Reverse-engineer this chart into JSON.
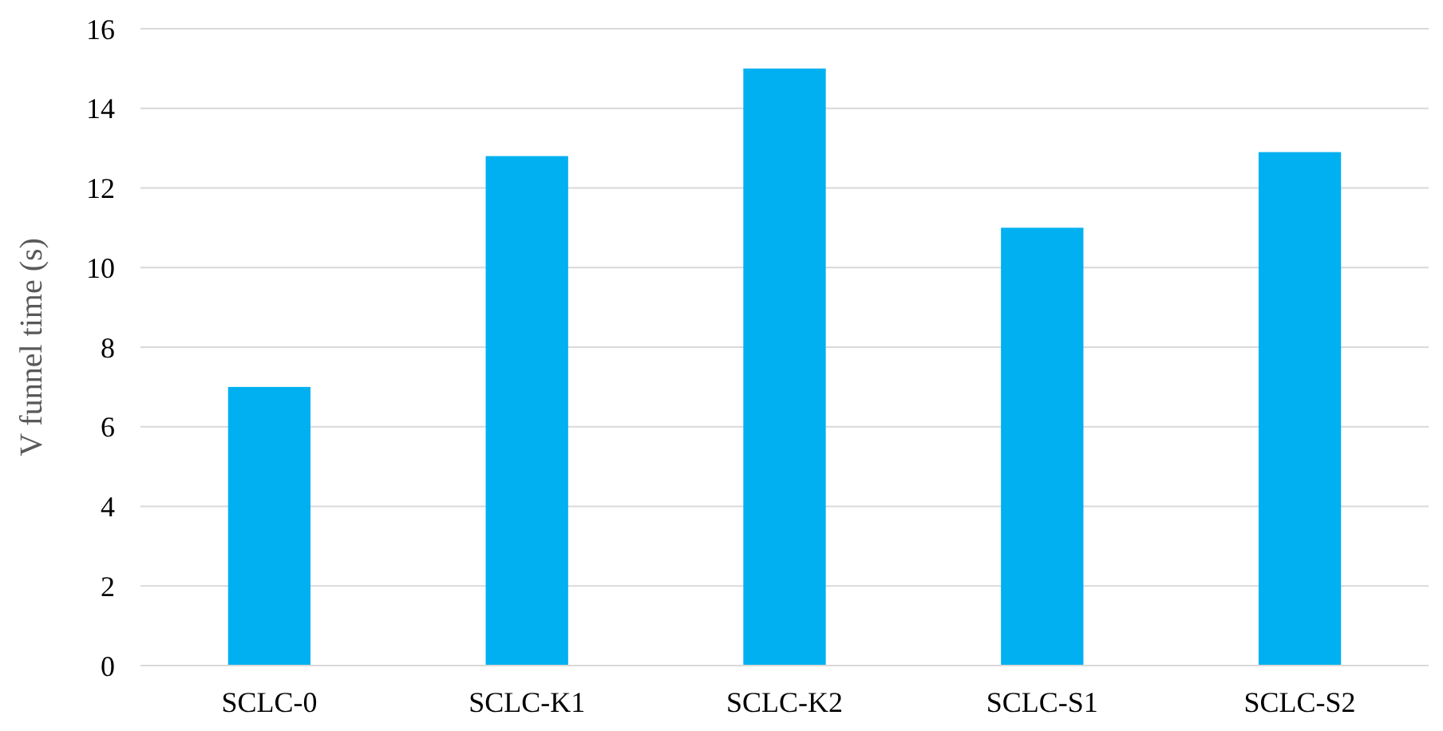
{
  "chart_data": {
    "type": "bar",
    "ylabel": "V funnel time (s)",
    "categories": [
      "SCLC-0",
      "SCLC-K1",
      "SCLC-K2",
      "SCLC-S1",
      "SCLC-S2"
    ],
    "values": [
      7,
      12.8,
      15,
      11,
      12.9
    ],
    "color": "#00b0f0",
    "ylim": [
      0,
      16
    ],
    "yticks": [
      0,
      2,
      4,
      6,
      8,
      10,
      12,
      14,
      16
    ],
    "grid": "y"
  }
}
